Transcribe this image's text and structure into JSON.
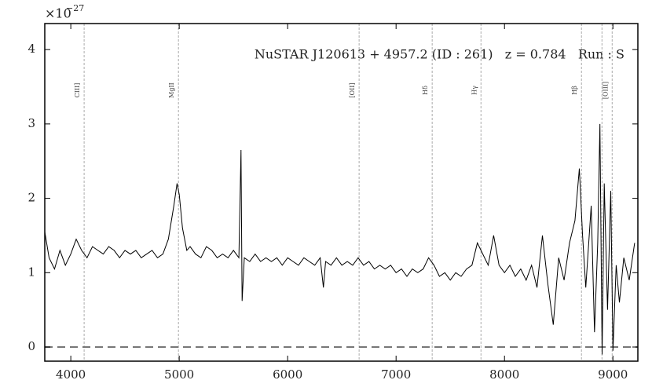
{
  "chart_data": {
    "type": "line",
    "annotation": "NuSTAR J120613 + 4957.2 (ID : 261)   z = 0.784   Run : S",
    "y_scale_base": "×10",
    "y_scale_exponent": "−27",
    "xlim": [
      3760,
      9230
    ],
    "ylim": [
      -0.19,
      4.35
    ],
    "xticks": [
      4000,
      5000,
      6000,
      7000,
      8000,
      9000
    ],
    "yticks": [
      0,
      1,
      2,
      3,
      4
    ],
    "hline": 0,
    "line_markers": {
      "x": [
        4123,
        4993,
        6659,
        7333,
        7783,
        8710,
        8899,
        8993
      ],
      "labels": [
        "CIII]",
        "MgII",
        "[OII]",
        "Hδ",
        "Hγ",
        "Hβ",
        null,
        "[OIII]"
      ]
    },
    "series": [
      {
        "color": "#000000",
        "x": [
          3760,
          3800,
          3850,
          3900,
          3950,
          4000,
          4050,
          4100,
          4150,
          4200,
          4250,
          4300,
          4350,
          4400,
          4450,
          4500,
          4550,
          4600,
          4650,
          4700,
          4750,
          4800,
          4850,
          4900,
          4950,
          4980,
          5000,
          5030,
          5070,
          5100,
          5150,
          5200,
          5250,
          5300,
          5350,
          5400,
          5450,
          5500,
          5550,
          5570,
          5580,
          5600,
          5650,
          5700,
          5750,
          5800,
          5850,
          5900,
          5950,
          6000,
          6050,
          6100,
          6150,
          6200,
          6250,
          6300,
          6330,
          6350,
          6400,
          6450,
          6500,
          6550,
          6600,
          6650,
          6700,
          6750,
          6800,
          6850,
          6900,
          6950,
          7000,
          7050,
          7100,
          7150,
          7200,
          7250,
          7300,
          7350,
          7400,
          7450,
          7500,
          7550,
          7600,
          7650,
          7700,
          7750,
          7800,
          7850,
          7900,
          7950,
          8000,
          8050,
          8100,
          8150,
          8200,
          8250,
          8300,
          8350,
          8400,
          8450,
          8500,
          8550,
          8600,
          8650,
          8690,
          8720,
          8750,
          8800,
          8830,
          8860,
          8880,
          8900,
          8920,
          8950,
          8980,
          9000,
          9030,
          9060,
          9100,
          9150,
          9200
        ],
        "values": [
          1.55,
          1.2,
          1.05,
          1.3,
          1.1,
          1.25,
          1.45,
          1.3,
          1.2,
          1.35,
          1.3,
          1.25,
          1.35,
          1.3,
          1.2,
          1.3,
          1.25,
          1.3,
          1.2,
          1.25,
          1.3,
          1.2,
          1.25,
          1.45,
          1.9,
          2.2,
          2.05,
          1.6,
          1.3,
          1.35,
          1.25,
          1.2,
          1.35,
          1.3,
          1.2,
          1.25,
          1.2,
          1.3,
          1.2,
          2.65,
          0.62,
          1.2,
          1.15,
          1.25,
          1.15,
          1.2,
          1.15,
          1.2,
          1.1,
          1.2,
          1.15,
          1.1,
          1.2,
          1.15,
          1.1,
          1.2,
          0.8,
          1.15,
          1.1,
          1.2,
          1.1,
          1.15,
          1.1,
          1.2,
          1.1,
          1.15,
          1.05,
          1.1,
          1.05,
          1.1,
          1.0,
          1.05,
          0.95,
          1.05,
          1.0,
          1.05,
          1.2,
          1.1,
          0.95,
          1.0,
          0.9,
          1.0,
          0.95,
          1.05,
          1.1,
          1.4,
          1.25,
          1.1,
          1.5,
          1.1,
          1.0,
          1.1,
          0.95,
          1.05,
          0.9,
          1.1,
          0.8,
          1.5,
          0.85,
          0.3,
          1.2,
          0.9,
          1.4,
          1.7,
          2.4,
          1.5,
          0.8,
          1.9,
          0.2,
          1.4,
          3.0,
          -0.1,
          2.2,
          0.5,
          2.1,
          -0.05,
          1.1,
          0.6,
          1.2,
          0.9,
          1.4
        ]
      }
    ]
  }
}
